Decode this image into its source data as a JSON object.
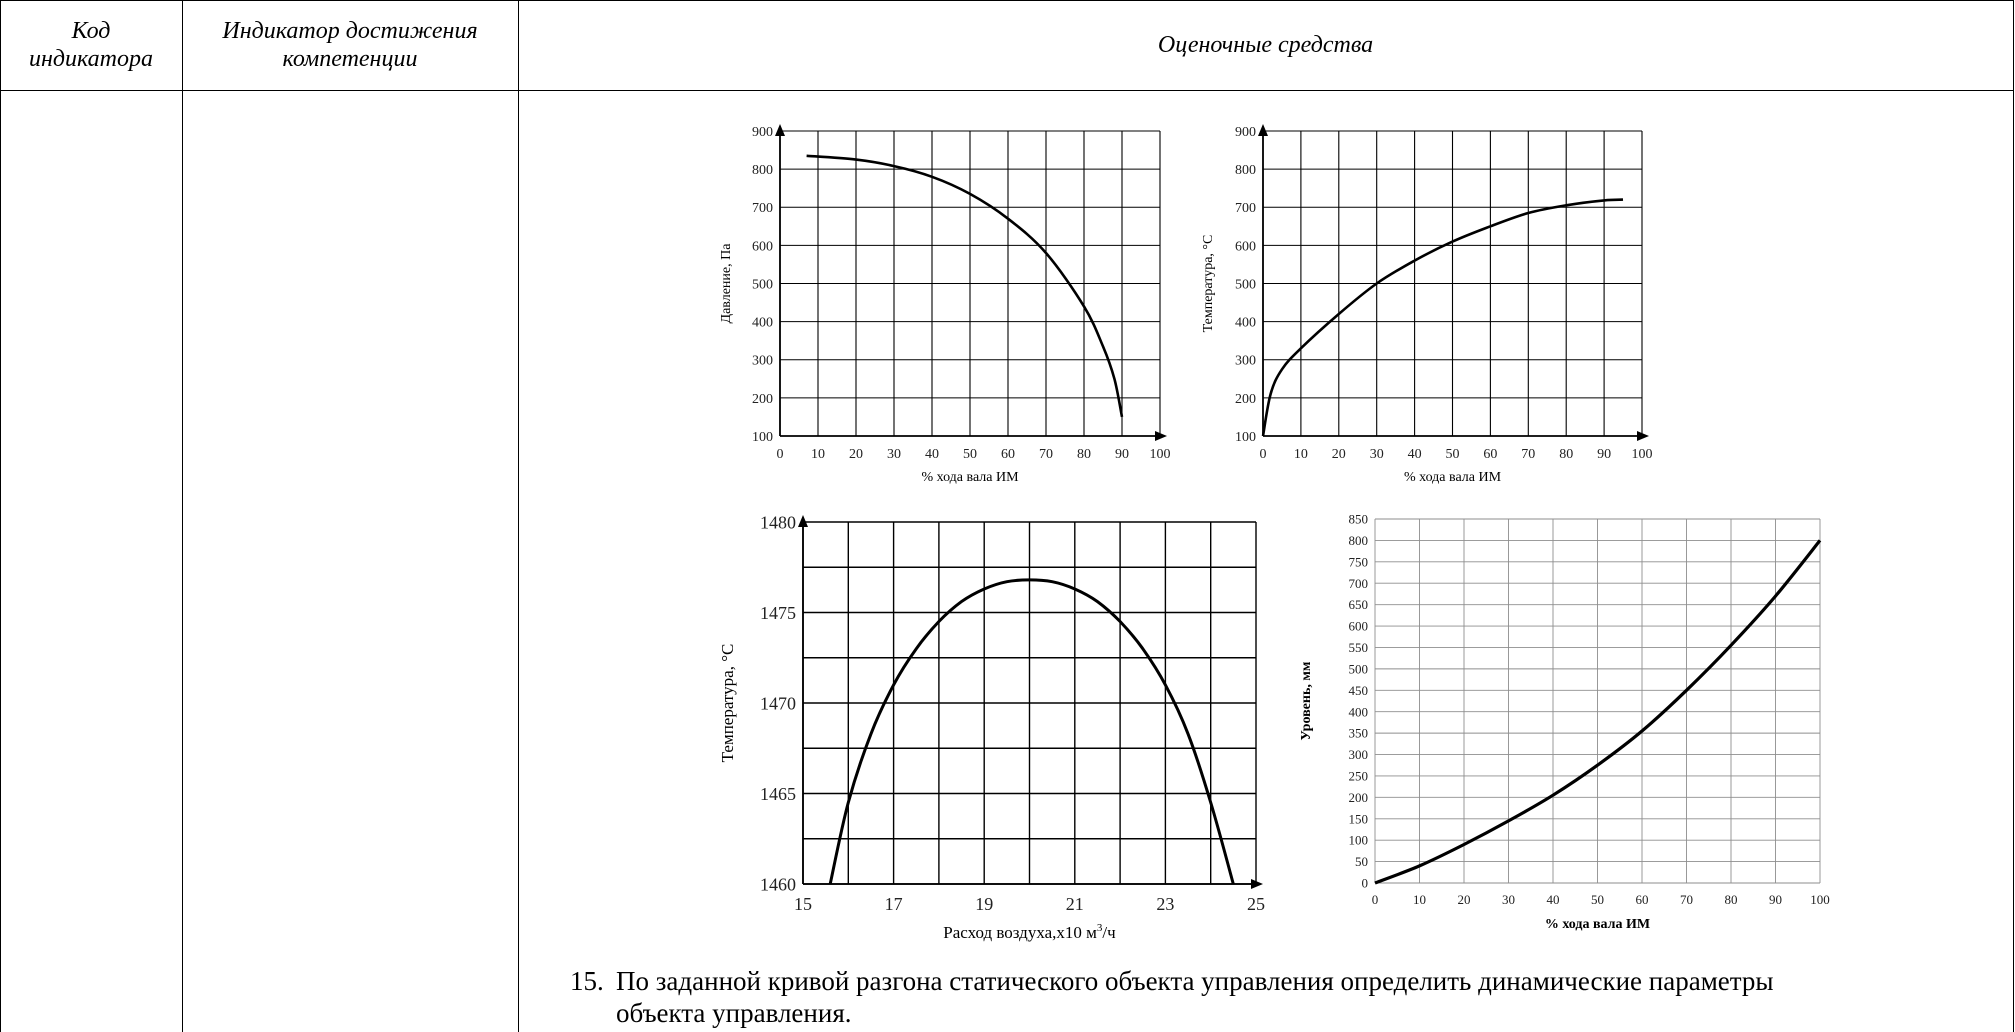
{
  "table": {
    "headers": {
      "code": [
        "Код",
        "индикатора"
      ],
      "indicator": [
        "Индикатор достижения",
        "компетенции"
      ],
      "assessment": "Оценочные средства"
    }
  },
  "task": {
    "number": "15.",
    "text_line1": "По заданной кривой разгона статического объекта управления определить динамические параметры",
    "text_line2": "объекта управления."
  },
  "chart_data": [
    {
      "type": "line",
      "ylabel": "Давление, Па",
      "xlabel": "% хода вала ИМ",
      "xlim": [
        0,
        100
      ],
      "ylim": [
        100,
        900
      ],
      "xticks": [
        0,
        10,
        20,
        30,
        40,
        50,
        60,
        70,
        80,
        90,
        100
      ],
      "yticks": [
        100,
        200,
        300,
        400,
        500,
        600,
        700,
        800,
        900
      ],
      "grid": true,
      "series": [
        {
          "x": [
            7,
            20,
            30,
            40,
            50,
            60,
            70,
            80,
            85,
            88,
            90
          ],
          "y": [
            835,
            825,
            808,
            780,
            735,
            670,
            580,
            440,
            335,
            250,
            150
          ]
        }
      ]
    },
    {
      "type": "line",
      "ylabel": "Температура, °С",
      "xlabel": "% хода вала ИМ",
      "xlim": [
        0,
        100
      ],
      "ylim": [
        100,
        900
      ],
      "xticks": [
        0,
        10,
        20,
        30,
        40,
        50,
        60,
        70,
        80,
        90,
        100
      ],
      "yticks": [
        100,
        200,
        300,
        400,
        500,
        600,
        700,
        800,
        900
      ],
      "grid": true,
      "series": [
        {
          "x": [
            0,
            2,
            5,
            10,
            20,
            30,
            40,
            50,
            60,
            70,
            80,
            90,
            95
          ],
          "y": [
            100,
            210,
            275,
            330,
            420,
            500,
            560,
            610,
            650,
            685,
            705,
            718,
            720
          ]
        }
      ]
    },
    {
      "type": "line",
      "ylabel": "Температура, °С",
      "xlabel_main": "Расход воздуха,х10 м",
      "xlabel_sup": "3",
      "xlabel_tail": "/ч",
      "xlim": [
        15,
        25
      ],
      "ylim": [
        1460,
        1480
      ],
      "xticks": [
        15,
        17,
        19,
        21,
        23,
        25
      ],
      "yticks": [
        1460,
        1465,
        1470,
        1475,
        1480
      ],
      "grid": true,
      "series": [
        {
          "x": [
            15.6,
            16.0,
            16.5,
            17.0,
            17.5,
            18.0,
            18.5,
            19.0,
            19.5,
            20.0,
            20.5,
            21.0,
            21.5,
            22.0,
            22.5,
            23.0,
            23.5,
            24.0,
            24.5
          ],
          "y": [
            1460.0,
            1464.5,
            1468.3,
            1471.0,
            1473.0,
            1474.5,
            1475.6,
            1476.3,
            1476.7,
            1476.8,
            1476.7,
            1476.3,
            1475.6,
            1474.5,
            1473.0,
            1471.0,
            1468.3,
            1464.5,
            1460.0
          ]
        }
      ]
    },
    {
      "type": "line",
      "ylabel": "Уровень, мм",
      "xlabel": "% хода вала ИМ",
      "xlim": [
        0,
        100
      ],
      "ylim": [
        0,
        850
      ],
      "xticks": [
        0,
        10,
        20,
        30,
        40,
        50,
        60,
        70,
        80,
        90,
        100
      ],
      "yticks": [
        0,
        50,
        100,
        150,
        200,
        250,
        300,
        350,
        400,
        450,
        500,
        550,
        600,
        650,
        700,
        750,
        800,
        850
      ],
      "grid": true,
      "series": [
        {
          "x": [
            0,
            10,
            20,
            30,
            40,
            50,
            60,
            70,
            80,
            90,
            100
          ],
          "y": [
            0,
            40,
            90,
            145,
            205,
            275,
            355,
            450,
            555,
            670,
            800
          ]
        }
      ]
    }
  ]
}
